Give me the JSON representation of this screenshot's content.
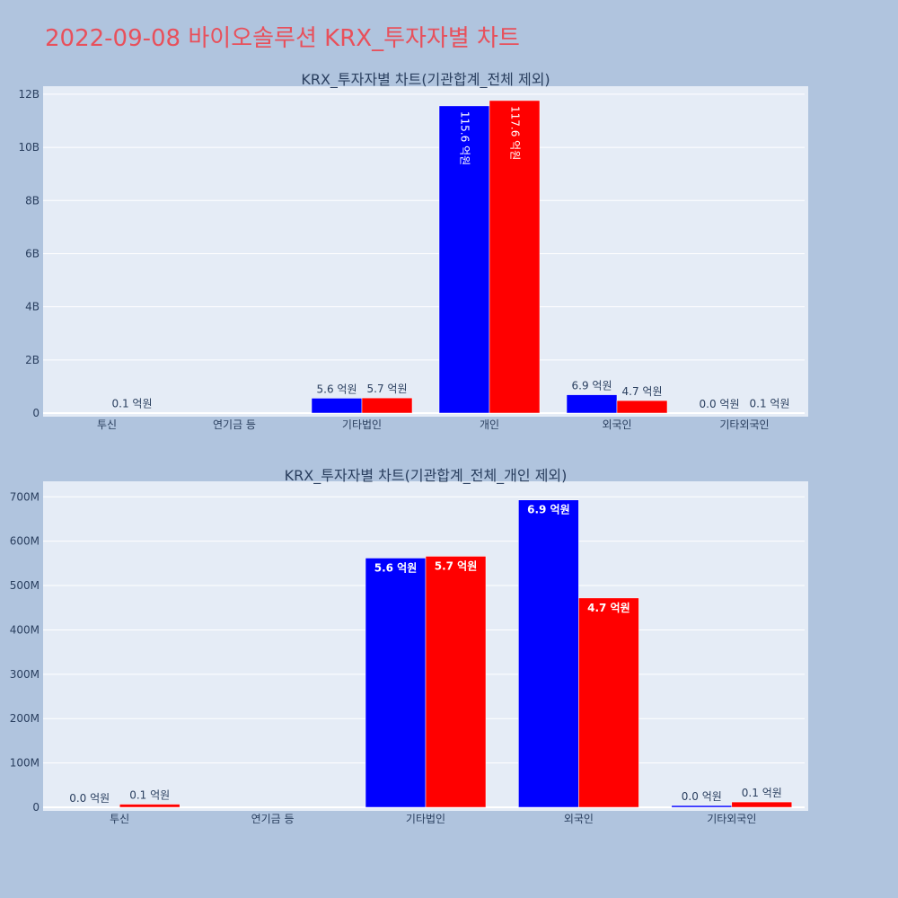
{
  "page": {
    "title": "2022-09-08 바이오솔루션 KRX_투자자별 차트"
  },
  "colors": {
    "background": "#b0c4de",
    "plot_background": "#e5ecf6",
    "series_a": "#0000ff",
    "series_b": "#ff0000",
    "title": "#e8505b",
    "text": "#2a3f5f"
  },
  "chart_data": [
    {
      "type": "bar",
      "title": "KRX_투자자별 차트(기관합계_전체 제외)",
      "categories": [
        "투신",
        "연기금 등",
        "기타법인",
        "개인",
        "외국인",
        "기타외국인"
      ],
      "ylim": [
        0,
        12300000000
      ],
      "yticks": [
        0,
        2000000000,
        4000000000,
        6000000000,
        8000000000,
        10000000000,
        12000000000
      ],
      "ytick_labels": [
        "0",
        "2B",
        "4B",
        "6B",
        "8B",
        "10B",
        "12B"
      ],
      "grid": true,
      "series": [
        {
          "color": "#0000ff",
          "values": [
            0,
            0,
            560000000,
            11560000000,
            690000000,
            0
          ],
          "labels": [
            "",
            "",
            "5.6 억원",
            "115.6 억원",
            "6.9 억원",
            "0.0 억원"
          ]
        },
        {
          "color": "#ff0000",
          "values": [
            10000000,
            0,
            570000000,
            11760000000,
            470000000,
            10000000
          ],
          "labels": [
            "0.1 억원",
            "",
            "5.7 억원",
            "117.6 억원",
            "4.7 억원",
            "0.1 억원"
          ]
        }
      ]
    },
    {
      "type": "bar",
      "title": "KRX_투자자별 차트(기관합계_전체_개인 제외)",
      "categories": [
        "투신",
        "연기금 등",
        "기타법인",
        "외국인",
        "기타외국인"
      ],
      "ylim": [
        0,
        735000000
      ],
      "yticks": [
        0,
        100000000,
        200000000,
        300000000,
        400000000,
        500000000,
        600000000,
        700000000
      ],
      "ytick_labels": [
        "0",
        "100M",
        "200M",
        "300M",
        "400M",
        "500M",
        "600M",
        "700M"
      ],
      "grid": true,
      "series": [
        {
          "color": "#0000ff",
          "values": [
            0,
            0,
            562000000,
            693000000,
            4000000
          ],
          "labels": [
            "0.0 억원",
            "",
            "5.6 억원",
            "6.9 억원",
            "0.0 억원"
          ]
        },
        {
          "color": "#ff0000",
          "values": [
            7000000,
            0,
            566000000,
            472000000,
            12000000
          ],
          "labels": [
            "0.1 억원",
            "",
            "5.7 억원",
            "4.7 억원",
            "0.1 억원"
          ]
        }
      ]
    }
  ]
}
